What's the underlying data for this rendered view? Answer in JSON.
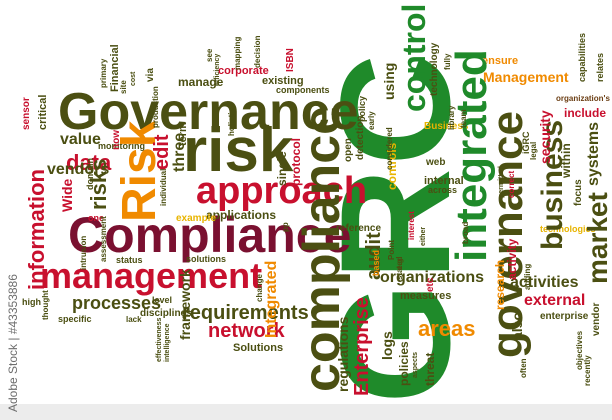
{
  "colors": {
    "dark_olive": "#4b4f12",
    "green": "#1f8a2a",
    "red": "#c8102e",
    "maroon": "#7a1030",
    "orange": "#f08a00",
    "yellow": "#e8b400",
    "teal": "#1f6b6b",
    "brown": "#6b3e14"
  },
  "watermark": "Adobe Stock | #43353886",
  "words": {
    "grc": "GRC",
    "governance_main": "Governance",
    "risk_main": "risk",
    "compliance_main": "Compliance",
    "management_main": "management",
    "compliance_vertical": "compliance",
    "governance_vertical": "governance",
    "integrated": "integrated",
    "control": "control",
    "approach": "approach",
    "risk_vertical": "Risk",
    "information": "information",
    "data": "data",
    "risks": "risks",
    "vendors": "vendors",
    "processes": "processes",
    "requirements": "requirements",
    "network": "network",
    "business": "business",
    "market": "market",
    "areas": "areas",
    "enterprise_vertical": "Enterprise",
    "audit": "audit",
    "external": "external",
    "activities": "activities",
    "organizations": "organizations",
    "management_small": "Management",
    "value": "value",
    "edit": "edit",
    "three": "three",
    "framework": "framework",
    "applications": "applications",
    "solutions": "Solutions",
    "regulations": "regulations",
    "policies": "policies",
    "threat": "threat",
    "measures": "measures",
    "logs": "logs",
    "also": "also",
    "systems": "systems",
    "security": "security",
    "include": "include",
    "within": "within",
    "internal": "internal",
    "across": "across",
    "controls": "controls",
    "using": "using",
    "technology": "technology",
    "ensure": "ensure",
    "disciplines": "disciplines",
    "manage": "manage",
    "corporate": "corporate",
    "existing": "existing",
    "components": "components",
    "isbn": "ISBN",
    "protocol": "protocol",
    "single": "single",
    "monitoring": "monitoring",
    "term": "term",
    "reference": "reference",
    "level": "level",
    "example": "example",
    "status": "status",
    "solutions_small": "solutions",
    "specific": "specific",
    "wide": "Wide",
    "domain": "domain",
    "one": "one",
    "financial": "Financial",
    "critical": "critical",
    "sensor": "sensor",
    "lack": "lack",
    "integrated_small": "Integrated",
    "enterprise_small": "enterprise",
    "vendor": "vendor",
    "research": "research",
    "activity": "activity",
    "based": "based",
    "detection": "detection",
    "open": "open",
    "web": "web",
    "technologies": "technologies",
    "focus": "focus",
    "irc": "iGRC",
    "organizations_small": "organization's",
    "capabilities": "capabilities",
    "relates": "relates",
    "policy": "policy",
    "high": "high",
    "thought": "thought",
    "etc": "etc",
    "via": "via",
    "site": "site",
    "now": "now",
    "business_small": "Business",
    "fully": "fully",
    "correct": "correct",
    "mapping": "mapping",
    "intrusion": "intrusion",
    "holistic": "holistic",
    "production": "production",
    "primary": "primary",
    "individual": "individual",
    "change": "change",
    "early": "early",
    "library": "library",
    "team": "team",
    "decision": "decision",
    "legal": "legal",
    "assessment": "assessment",
    "stated": "stated",
    "point": "Point",
    "often": "often",
    "recently": "recently",
    "adding": "adding",
    "considered": "considered",
    "eg": "e.g",
    "pp": "pp",
    "objectives": "objectives",
    "interest": "interest",
    "broad": "broad",
    "effectiveness": "effectiveness",
    "efficiency": "efficiency",
    "permitted": "permitted",
    "intelligence": "intelligence",
    "aspects": "aspects",
    "see": "see",
    "cost": "cost",
    "either": "either"
  }
}
